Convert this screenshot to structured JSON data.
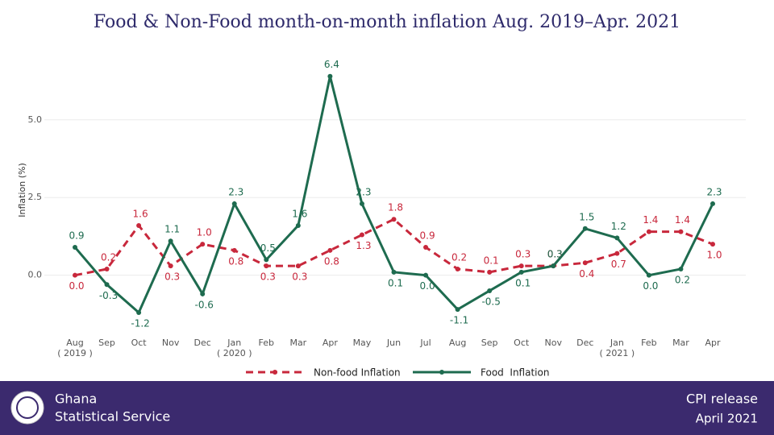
{
  "chart_data": {
    "type": "line",
    "title": "Food & Non-Food month-on-month inflation Aug. 2019–Apr. 2021",
    "y_label": "Inflation (%)",
    "categories": [
      "Aug",
      "Sep",
      "Oct",
      "Nov",
      "Dec",
      "Jan",
      "Feb",
      "Mar",
      "Apr",
      "May",
      "Jun",
      "Jul",
      "Aug",
      "Sep",
      "Oct",
      "Nov",
      "Dec",
      "Jan",
      "Feb",
      "Mar",
      "Apr"
    ],
    "category_groups": [
      "( 2019 )",
      null,
      null,
      null,
      null,
      "( 2020 )",
      null,
      null,
      null,
      null,
      null,
      null,
      null,
      null,
      null,
      null,
      null,
      "( 2021 )",
      null,
      null,
      null
    ],
    "ylim": [
      -1.9,
      7.3
    ],
    "yticks": [
      {
        "value": 0,
        "label": "0.0"
      },
      {
        "value": 2.5,
        "label": "2.5"
      },
      {
        "value": 5,
        "label": "5.0"
      }
    ],
    "grid": true,
    "series": [
      {
        "name": "Non-food Inflation",
        "color": "#c8283c",
        "dash": true,
        "values": [
          0.0,
          0.2,
          1.6,
          0.3,
          1.0,
          0.8,
          0.3,
          0.3,
          0.8,
          1.3,
          1.8,
          0.9,
          0.2,
          0.1,
          0.3,
          0.3,
          0.4,
          0.7,
          1.4,
          1.4,
          1.0
        ],
        "value_labels": [
          "0.0",
          "0.2",
          "1.6",
          "0.3",
          "1.0",
          "0.8",
          "0.3",
          "0.3",
          "0.8",
          "1.3",
          "1.8",
          "0.9",
          "0.2",
          "0.1",
          "0.3",
          "0.3",
          "0.4",
          "0.7",
          "1.4",
          "1.4",
          "1.0"
        ]
      },
      {
        "name": "Food  Inflation",
        "color": "#1e6b4f",
        "dash": false,
        "values": [
          0.9,
          -0.3,
          -1.2,
          1.1,
          -0.6,
          2.3,
          0.5,
          1.6,
          6.4,
          2.3,
          0.1,
          0.0,
          -1.1,
          -0.5,
          0.1,
          0.3,
          1.5,
          1.2,
          0.0,
          0.2,
          2.3
        ],
        "value_labels": [
          "0.9",
          "-0.3",
          "-1.2",
          "1.1",
          "-0.6",
          "2.3",
          "0.5",
          "1.6",
          "6.4",
          "2.3",
          "0.1",
          "0.0",
          "-1.1",
          "-0.5",
          "0.1",
          "0.3",
          "1.5",
          "1.2",
          "0.0",
          "0.2",
          "2.3"
        ]
      }
    ]
  },
  "footer": {
    "org_line1": "Ghana",
    "org_line2": "Statistical Service",
    "release": "CPI release",
    "date": "April 2021"
  }
}
